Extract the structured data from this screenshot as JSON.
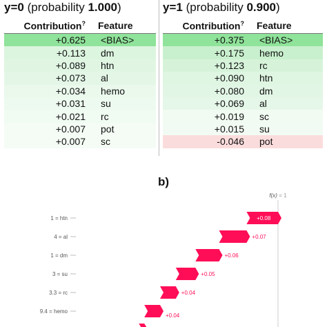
{
  "panel_a": {
    "left": {
      "title_prefix": "y=0",
      "title_prob_text": "(probability",
      "title_prob_value": "1.000",
      "title_close": ")",
      "header_contribution": "Contribution",
      "header_sup": "?",
      "header_feature": "Feature",
      "rows": [
        {
          "value": "+0.625",
          "feature": "<BIAS>",
          "color": "#8fe39a"
        },
        {
          "value": "+0.113",
          "feature": "dm",
          "color": "#dcf5df"
        },
        {
          "value": "+0.089",
          "feature": "htn",
          "color": "#e0f6e3"
        },
        {
          "value": "+0.073",
          "feature": "al",
          "color": "#e4f7e7"
        },
        {
          "value": "+0.034",
          "feature": "hemo",
          "color": "#ebf9ed"
        },
        {
          "value": "+0.031",
          "feature": "su",
          "color": "#edfaef"
        },
        {
          "value": "+0.021",
          "feature": "rc",
          "color": "#f0fbf2"
        },
        {
          "value": "+0.007",
          "feature": "pot",
          "color": "#f4fcf5"
        },
        {
          "value": "+0.007",
          "feature": "sc",
          "color": "#f4fcf5"
        }
      ]
    },
    "right": {
      "title_prefix": "y=1",
      "title_prob_text": "(probability",
      "title_prob_value": "0.900",
      "title_close": ")",
      "header_contribution": "Contribution",
      "header_sup": "?",
      "header_feature": "Feature",
      "rows": [
        {
          "value": "+0.375",
          "feature": "<BIAS>",
          "color": "#8fe39a"
        },
        {
          "value": "+0.175",
          "feature": "hemo",
          "color": "#c9f0ce"
        },
        {
          "value": "+0.123",
          "feature": "rc",
          "color": "#d6f3da"
        },
        {
          "value": "+0.090",
          "feature": "htn",
          "color": "#dff6e2"
        },
        {
          "value": "+0.080",
          "feature": "dm",
          "color": "#e2f6e5"
        },
        {
          "value": "+0.069",
          "feature": "al",
          "color": "#e5f7e8"
        },
        {
          "value": "+0.019",
          "feature": "sc",
          "color": "#f1fbf2"
        },
        {
          "value": "+0.015",
          "feature": "su",
          "color": "#f2fbf3"
        },
        {
          "value": "-0.046",
          "feature": "pot",
          "color": "#fbdcdc"
        }
      ]
    }
  },
  "panel_b_label": "b)",
  "chart_data": {
    "type": "bar",
    "subtype": "waterfall",
    "fx_label_prefix": "f(x)",
    "fx_label_suffix": " = 1",
    "fx_value": 1,
    "bar_color": "#ff0d57",
    "label_color_outside": "#ff0d57",
    "label_color_inside": "#ffffff",
    "rows": [
      {
        "label": "1 = htn",
        "label_value": 1,
        "delta": 0.08,
        "value_label": "+0.08"
      },
      {
        "label": "4 = al",
        "label_value": 4,
        "delta": 0.07,
        "value_label": "+0.07"
      },
      {
        "label": "1 = dm",
        "label_value": 1,
        "delta": 0.06,
        "value_label": "+0.06"
      },
      {
        "label": "3 = su",
        "label_value": 3,
        "delta": 0.05,
        "value_label": "+0.05"
      },
      {
        "label": "3.3 = rc",
        "label_value": 3.3,
        "delta": 0.04,
        "value_label": "+0.04"
      },
      {
        "label": "9.4 = hemo",
        "label_value": 9.4,
        "delta": 0.04,
        "value_label": "+0.04"
      }
    ],
    "partial_next_bar_visible": true
  }
}
